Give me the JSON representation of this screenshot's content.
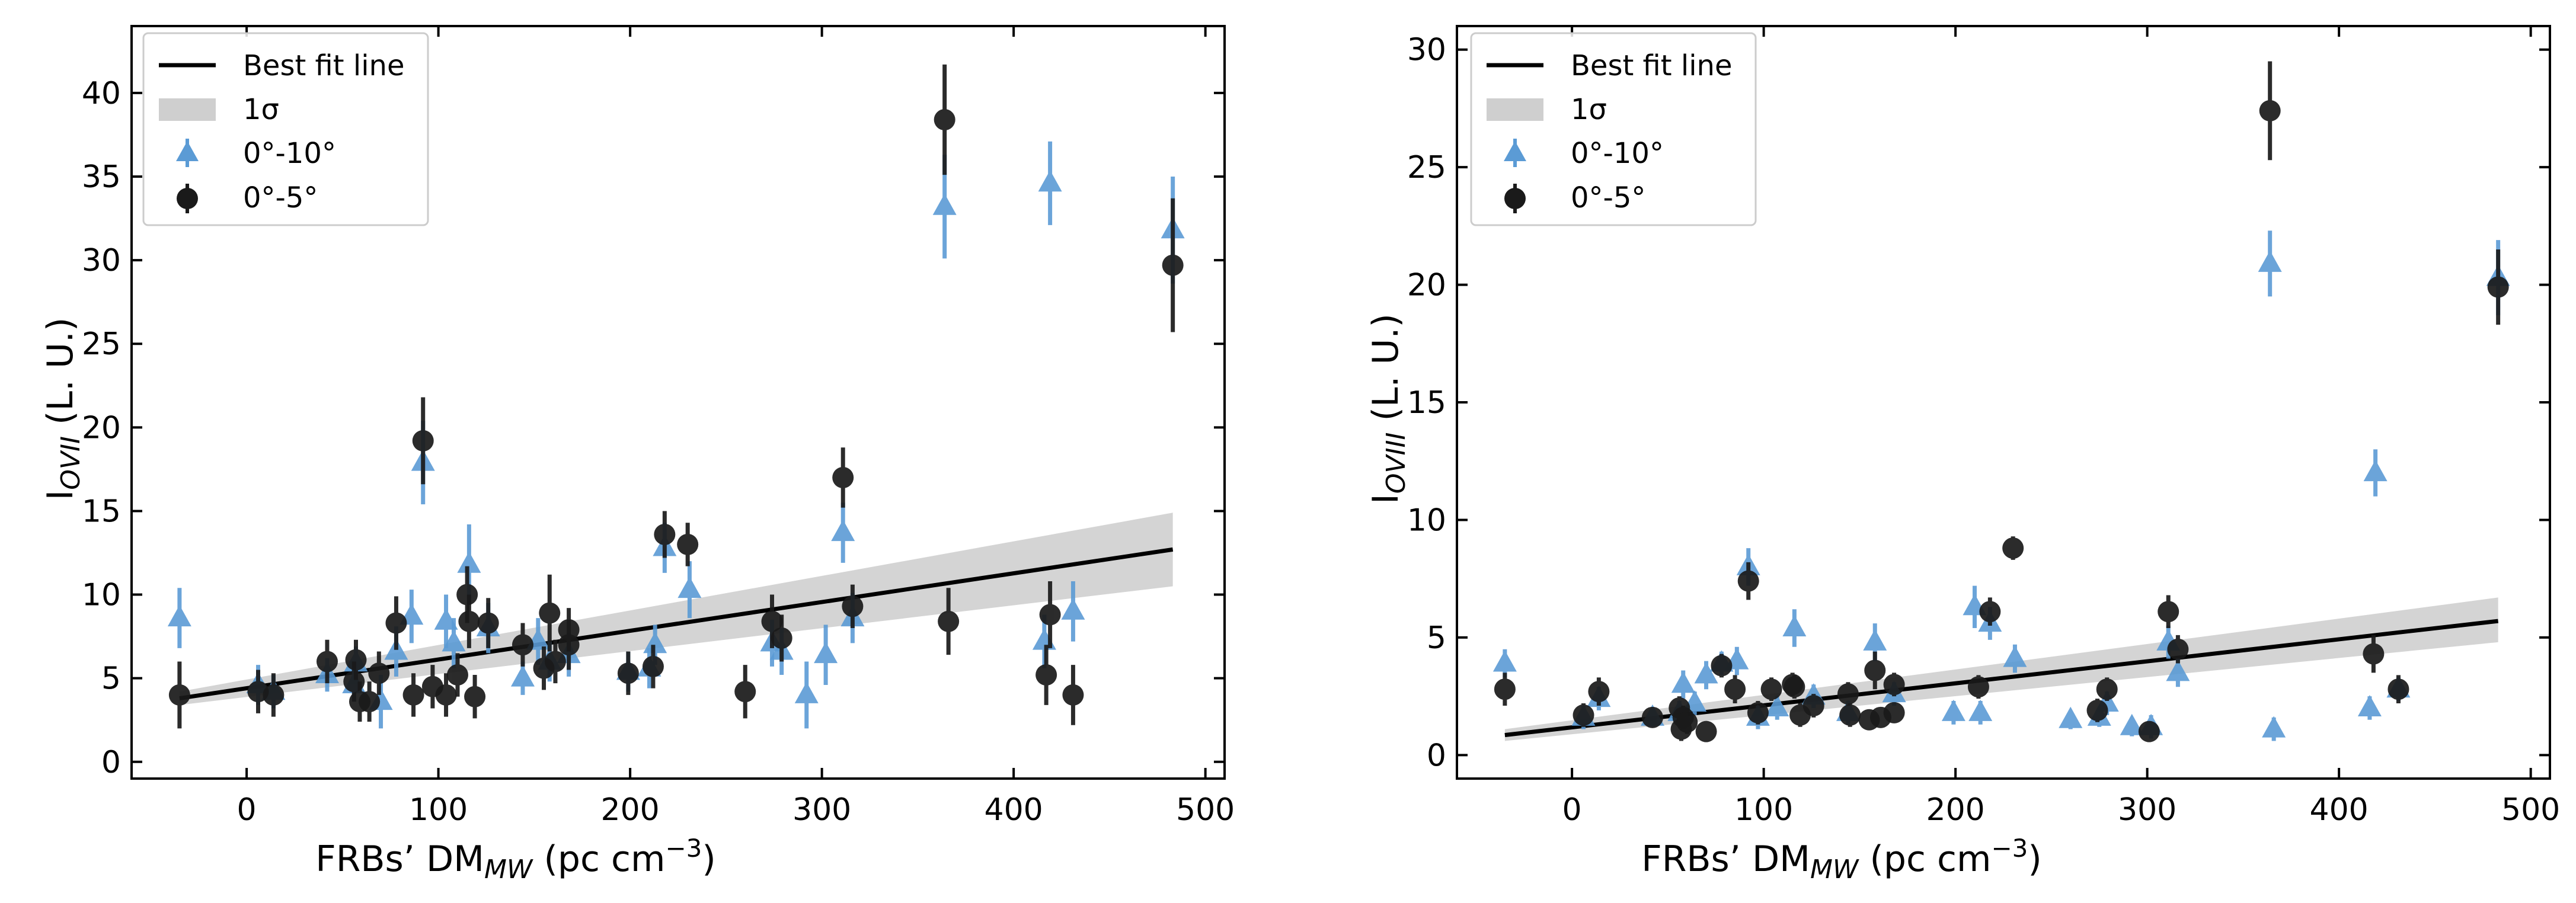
{
  "colors": {
    "best_fit": "#000000",
    "band": "#cfcfcf",
    "tri": "#5b9bd5",
    "circ": "#1a1a1a"
  },
  "chart_data": [
    {
      "type": "scatter",
      "xlabel": "FRBs’ DM",
      "xlabel_sub": "MW",
      "xlabel_units": " (pc cm",
      "xlabel_sup": "−3",
      "xlabel_end": ")",
      "ylabel": "I",
      "ylabel_sub": "OVII",
      "ylabel_units": " (L. U.)",
      "xlim": [
        -60,
        510
      ],
      "ylim": [
        -1,
        44
      ],
      "xticks": [
        0,
        100,
        200,
        300,
        400,
        500
      ],
      "yticks": [
        0,
        5,
        10,
        15,
        20,
        25,
        30,
        35,
        40
      ],
      "legend": {
        "position": "top-left",
        "entries": [
          "Best fit line",
          "1σ",
          "0°-10°",
          "0°-5°"
        ]
      },
      "fit_line": {
        "x": [
          -35,
          483
        ],
        "y": [
          3.8,
          12.7
        ]
      },
      "band": {
        "x": [
          -35,
          483
        ],
        "lower": [
          3.4,
          10.5
        ],
        "upper": [
          4.2,
          14.9
        ]
      },
      "series": [
        {
          "name": "0°-10°",
          "marker": "triangle",
          "points": [
            {
              "x": -35,
              "y": 8.6,
              "err": 1.8
            },
            {
              "x": 6,
              "y": 4.6,
              "err": 1.2
            },
            {
              "x": 14,
              "y": 4.2,
              "err": 1.0
            },
            {
              "x": 42,
              "y": 5.2,
              "err": 1.0
            },
            {
              "x": 56,
              "y": 4.6,
              "err": 1.0
            },
            {
              "x": 57,
              "y": 5.9,
              "err": 1.0
            },
            {
              "x": 70,
              "y": 3.6,
              "err": 1.6
            },
            {
              "x": 78,
              "y": 6.6,
              "err": 1.5
            },
            {
              "x": 86,
              "y": 8.7,
              "err": 1.6
            },
            {
              "x": 92,
              "y": 17.9,
              "err": 2.5
            },
            {
              "x": 104,
              "y": 8.4,
              "err": 1.6
            },
            {
              "x": 108,
              "y": 7.1,
              "err": 1.5
            },
            {
              "x": 116,
              "y": 11.8,
              "err": 2.4
            },
            {
              "x": 126,
              "y": 8.0,
              "err": 1.5
            },
            {
              "x": 144,
              "y": 5.0,
              "err": 1.0
            },
            {
              "x": 152,
              "y": 7.2,
              "err": 1.4
            },
            {
              "x": 158,
              "y": 6.0,
              "err": 1.2
            },
            {
              "x": 168,
              "y": 6.4,
              "err": 1.3
            },
            {
              "x": 199,
              "y": 5.4,
              "err": 1.2
            },
            {
              "x": 210,
              "y": 5.6,
              "err": 1.2
            },
            {
              "x": 213,
              "y": 7.0,
              "err": 1.2
            },
            {
              "x": 218,
              "y": 12.8,
              "err": 1.5
            },
            {
              "x": 231,
              "y": 10.3,
              "err": 1.7
            },
            {
              "x": 274,
              "y": 7.1,
              "err": 1.4
            },
            {
              "x": 279,
              "y": 6.6,
              "err": 1.4
            },
            {
              "x": 292,
              "y": 4.0,
              "err": 2.0
            },
            {
              "x": 302,
              "y": 6.4,
              "err": 1.8
            },
            {
              "x": 311,
              "y": 13.7,
              "err": 1.8
            },
            {
              "x": 316,
              "y": 8.6,
              "err": 1.5
            },
            {
              "x": 364,
              "y": 33.2,
              "err": 3.1
            },
            {
              "x": 419,
              "y": 34.6,
              "err": 2.5
            },
            {
              "x": 416,
              "y": 7.2,
              "err": 1.6
            },
            {
              "x": 431,
              "y": 9.0,
              "err": 1.8
            },
            {
              "x": 483,
              "y": 31.8,
              "err": 3.2
            }
          ]
        },
        {
          "name": "0°-5°",
          "marker": "circle",
          "points": [
            {
              "x": -35,
              "y": 4.0,
              "err": 2.0
            },
            {
              "x": 6,
              "y": 4.2,
              "err": 1.3
            },
            {
              "x": 14,
              "y": 4.0,
              "err": 1.3
            },
            {
              "x": 42,
              "y": 6.0,
              "err": 1.3
            },
            {
              "x": 56,
              "y": 4.8,
              "err": 1.2
            },
            {
              "x": 57,
              "y": 6.1,
              "err": 1.2
            },
            {
              "x": 59,
              "y": 3.6,
              "err": 1.2
            },
            {
              "x": 64,
              "y": 3.6,
              "err": 1.2
            },
            {
              "x": 69,
              "y": 5.3,
              "err": 1.3
            },
            {
              "x": 78,
              "y": 8.3,
              "err": 1.6
            },
            {
              "x": 87,
              "y": 4.0,
              "err": 1.3
            },
            {
              "x": 92,
              "y": 19.2,
              "err": 2.6
            },
            {
              "x": 97,
              "y": 4.5,
              "err": 1.3
            },
            {
              "x": 104,
              "y": 4.0,
              "err": 1.3
            },
            {
              "x": 110,
              "y": 5.2,
              "err": 1.3
            },
            {
              "x": 115,
              "y": 10.0,
              "err": 1.7
            },
            {
              "x": 116,
              "y": 8.4,
              "err": 1.6
            },
            {
              "x": 119,
              "y": 3.9,
              "err": 1.3
            },
            {
              "x": 126,
              "y": 8.3,
              "err": 1.5
            },
            {
              "x": 144,
              "y": 7.0,
              "err": 1.3
            },
            {
              "x": 155,
              "y": 5.6,
              "err": 1.3
            },
            {
              "x": 158,
              "y": 8.9,
              "err": 2.3
            },
            {
              "x": 161,
              "y": 6.0,
              "err": 1.3
            },
            {
              "x": 168,
              "y": 7.0,
              "err": 1.5
            },
            {
              "x": 168,
              "y": 7.9,
              "err": 1.3
            },
            {
              "x": 199,
              "y": 5.3,
              "err": 1.3
            },
            {
              "x": 212,
              "y": 5.7,
              "err": 1.3
            },
            {
              "x": 218,
              "y": 13.6,
              "err": 1.4
            },
            {
              "x": 230,
              "y": 13.0,
              "err": 1.3
            },
            {
              "x": 260,
              "y": 4.2,
              "err": 1.6
            },
            {
              "x": 274,
              "y": 8.4,
              "err": 1.6
            },
            {
              "x": 279,
              "y": 7.4,
              "err": 1.4
            },
            {
              "x": 311,
              "y": 17.0,
              "err": 1.8
            },
            {
              "x": 316,
              "y": 9.3,
              "err": 1.3
            },
            {
              "x": 364,
              "y": 38.4,
              "err": 3.3
            },
            {
              "x": 366,
              "y": 8.4,
              "err": 2.0
            },
            {
              "x": 417,
              "y": 5.2,
              "err": 1.8
            },
            {
              "x": 419,
              "y": 8.8,
              "err": 2.0
            },
            {
              "x": 431,
              "y": 4.0,
              "err": 1.8
            },
            {
              "x": 483,
              "y": 29.7,
              "err": 4.0
            }
          ]
        }
      ]
    },
    {
      "type": "scatter",
      "xlabel": "FRBs’ DM",
      "xlabel_sub": "MW",
      "xlabel_units": " (pc cm",
      "xlabel_sup": "−3",
      "xlabel_end": ")",
      "ylabel": "I",
      "ylabel_sub": "OVIII",
      "ylabel_units": " (L. U.)",
      "xlim": [
        -60,
        510
      ],
      "ylim": [
        -1,
        31
      ],
      "xticks": [
        0,
        100,
        200,
        300,
        400,
        500
      ],
      "yticks": [
        0,
        5,
        10,
        15,
        20,
        25,
        30
      ],
      "legend": {
        "position": "top-left",
        "entries": [
          "Best fit line",
          "1σ",
          "0°-10°",
          "0°-5°"
        ]
      },
      "fit_line": {
        "x": [
          -35,
          483
        ],
        "y": [
          0.85,
          5.7
        ]
      },
      "band": {
        "x": [
          -35,
          483
        ],
        "lower": [
          0.6,
          4.8
        ],
        "upper": [
          1.1,
          6.7
        ]
      },
      "series": [
        {
          "name": "0°-10°",
          "marker": "triangle",
          "points": [
            {
              "x": -35,
              "y": 3.9,
              "err": 0.6
            },
            {
              "x": 6,
              "y": 1.6,
              "err": 0.5
            },
            {
              "x": 14,
              "y": 2.4,
              "err": 0.5
            },
            {
              "x": 42,
              "y": 1.6,
              "err": 0.4
            },
            {
              "x": 56,
              "y": 1.8,
              "err": 0.5
            },
            {
              "x": 58,
              "y": 3.0,
              "err": 0.6
            },
            {
              "x": 64,
              "y": 2.2,
              "err": 0.5
            },
            {
              "x": 70,
              "y": 3.4,
              "err": 0.6
            },
            {
              "x": 78,
              "y": 3.9,
              "err": 0.5
            },
            {
              "x": 86,
              "y": 4.0,
              "err": 0.6
            },
            {
              "x": 92,
              "y": 8.0,
              "err": 0.8
            },
            {
              "x": 97,
              "y": 1.6,
              "err": 0.5
            },
            {
              "x": 107,
              "y": 2.0,
              "err": 0.5
            },
            {
              "x": 116,
              "y": 5.4,
              "err": 0.8
            },
            {
              "x": 126,
              "y": 2.5,
              "err": 0.5
            },
            {
              "x": 144,
              "y": 1.8,
              "err": 0.5
            },
            {
              "x": 158,
              "y": 4.8,
              "err": 0.8
            },
            {
              "x": 168,
              "y": 2.6,
              "err": 0.5
            },
            {
              "x": 199,
              "y": 1.8,
              "err": 0.5
            },
            {
              "x": 210,
              "y": 6.3,
              "err": 0.9
            },
            {
              "x": 213,
              "y": 1.8,
              "err": 0.5
            },
            {
              "x": 218,
              "y": 5.6,
              "err": 0.7
            },
            {
              "x": 231,
              "y": 4.1,
              "err": 0.6
            },
            {
              "x": 260,
              "y": 1.5,
              "err": 0.4
            },
            {
              "x": 275,
              "y": 1.6,
              "err": 0.4
            },
            {
              "x": 279,
              "y": 2.2,
              "err": 0.5
            },
            {
              "x": 292,
              "y": 1.2,
              "err": 0.4
            },
            {
              "x": 302,
              "y": 1.2,
              "err": 0.5
            },
            {
              "x": 311,
              "y": 4.8,
              "err": 0.7
            },
            {
              "x": 316,
              "y": 3.5,
              "err": 0.6
            },
            {
              "x": 364,
              "y": 20.9,
              "err": 1.4
            },
            {
              "x": 366,
              "y": 1.1,
              "err": 0.5
            },
            {
              "x": 416,
              "y": 2.0,
              "err": 0.5
            },
            {
              "x": 419,
              "y": 12.0,
              "err": 1.0
            },
            {
              "x": 431,
              "y": 2.8,
              "err": 0.5
            },
            {
              "x": 483,
              "y": 20.3,
              "err": 1.6
            }
          ]
        },
        {
          "name": "0°-5°",
          "marker": "circle",
          "points": [
            {
              "x": -35,
              "y": 2.8,
              "err": 0.7
            },
            {
              "x": 6,
              "y": 1.7,
              "err": 0.5
            },
            {
              "x": 14,
              "y": 2.7,
              "err": 0.6
            },
            {
              "x": 42,
              "y": 1.6,
              "err": 0.4
            },
            {
              "x": 56,
              "y": 2.0,
              "err": 0.5
            },
            {
              "x": 57,
              "y": 1.1,
              "err": 0.5
            },
            {
              "x": 58,
              "y": 1.6,
              "err": 0.5
            },
            {
              "x": 60,
              "y": 1.4,
              "err": 0.5
            },
            {
              "x": 70,
              "y": 1.0,
              "err": 0.4
            },
            {
              "x": 78,
              "y": 3.8,
              "err": 0.5
            },
            {
              "x": 85,
              "y": 2.8,
              "err": 0.6
            },
            {
              "x": 92,
              "y": 7.4,
              "err": 0.8
            },
            {
              "x": 97,
              "y": 1.8,
              "err": 0.5
            },
            {
              "x": 104,
              "y": 2.8,
              "err": 0.5
            },
            {
              "x": 115,
              "y": 3.0,
              "err": 0.5
            },
            {
              "x": 116,
              "y": 2.9,
              "err": 0.5
            },
            {
              "x": 119,
              "y": 1.7,
              "err": 0.5
            },
            {
              "x": 126,
              "y": 2.1,
              "err": 0.5
            },
            {
              "x": 144,
              "y": 2.6,
              "err": 0.5
            },
            {
              "x": 145,
              "y": 1.7,
              "err": 0.5
            },
            {
              "x": 155,
              "y": 1.5,
              "err": 0.4
            },
            {
              "x": 158,
              "y": 3.6,
              "err": 0.8
            },
            {
              "x": 161,
              "y": 1.6,
              "err": 0.4
            },
            {
              "x": 168,
              "y": 3.0,
              "err": 0.5
            },
            {
              "x": 168,
              "y": 1.8,
              "err": 0.4
            },
            {
              "x": 212,
              "y": 2.9,
              "err": 0.5
            },
            {
              "x": 218,
              "y": 6.1,
              "err": 0.6
            },
            {
              "x": 230,
              "y": 8.8,
              "err": 0.5
            },
            {
              "x": 274,
              "y": 1.9,
              "err": 0.5
            },
            {
              "x": 279,
              "y": 2.8,
              "err": 0.5
            },
            {
              "x": 301,
              "y": 1.0,
              "err": 0.4
            },
            {
              "x": 311,
              "y": 6.1,
              "err": 0.7
            },
            {
              "x": 316,
              "y": 4.5,
              "err": 0.6
            },
            {
              "x": 364,
              "y": 27.4,
              "err": 2.1
            },
            {
              "x": 418,
              "y": 4.3,
              "err": 0.8
            },
            {
              "x": 431,
              "y": 2.8,
              "err": 0.6
            },
            {
              "x": 483,
              "y": 19.9,
              "err": 1.6
            }
          ]
        }
      ]
    }
  ]
}
